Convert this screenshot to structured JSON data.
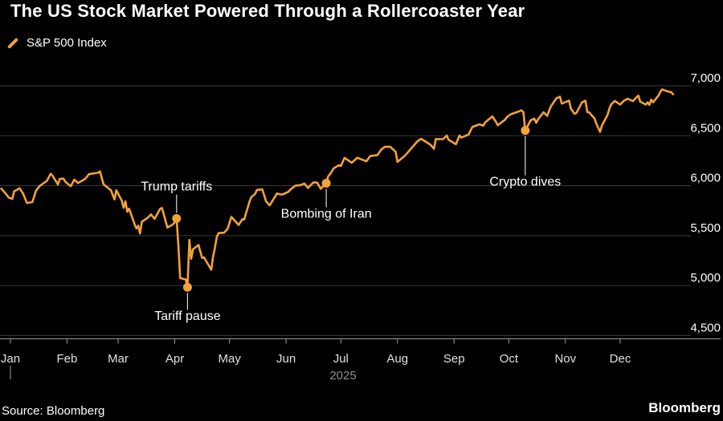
{
  "page": {
    "title": "The US Stock Market Powered Through a Rollercoaster Year",
    "source": "Source: Bloomberg",
    "brand": "Bloomberg"
  },
  "legend": {
    "series_label": "S&P 500 Index"
  },
  "colors": {
    "background": "#000000",
    "line": "#F2A23A",
    "grid": "#3a3a3a",
    "axis": "#9b9b9b",
    "y_label": "#ffffff",
    "x_label": "#e0e0e0",
    "muted": "#8f8f8f",
    "annotation_text": "#ffffff",
    "connector": "#d9d9d9"
  },
  "chart_data": {
    "type": "line",
    "title": "The US Stock Market Powered Through a Rollercoaster Year",
    "xlabel": "",
    "ylabel": "",
    "grid": "horizontal",
    "legend_position": "top-left",
    "x_axis": {
      "months": [
        "Jan",
        "Feb",
        "Mar",
        "Apr",
        "May",
        "Jun",
        "Jul",
        "Aug",
        "Sep",
        "Oct",
        "Nov",
        "Dec"
      ],
      "year_label": "2025"
    },
    "y_axis": {
      "range": [
        4500,
        7000
      ],
      "ticks": [
        {
          "value": 7000,
          "label": "7,000"
        },
        {
          "value": 6500,
          "label": "6,500"
        },
        {
          "value": 6000,
          "label": "6,000"
        },
        {
          "value": 5500,
          "label": "5,500"
        },
        {
          "value": 5000,
          "label": "5,000"
        },
        {
          "value": 4500,
          "label": "4,500"
        }
      ]
    },
    "annotations": [
      {
        "label": "Trump tariffs",
        "date": "2025-04-02",
        "value": 5671,
        "dy": -35
      },
      {
        "label": "Tariff pause",
        "date": "2025-04-08",
        "value": 4983,
        "dy": 41
      },
      {
        "label": "Bombing of Iran",
        "date": "2025-06-23",
        "value": 6025,
        "dy": 43
      },
      {
        "label": "Crypto dives",
        "date": "2025-10-10",
        "value": 6553,
        "dy": 69
      }
    ],
    "series": [
      {
        "name": "S&P 500 Index",
        "points": [
          [
            "2024-12-27",
            5971
          ],
          [
            "2024-12-30",
            5907
          ],
          [
            "2024-12-31",
            5882
          ],
          [
            "2025-01-02",
            5868
          ],
          [
            "2025-01-03",
            5942
          ],
          [
            "2025-01-06",
            5975
          ],
          [
            "2025-01-08",
            5918
          ],
          [
            "2025-01-10",
            5827
          ],
          [
            "2025-01-13",
            5836
          ],
          [
            "2025-01-15",
            5950
          ],
          [
            "2025-01-17",
            5997
          ],
          [
            "2025-01-21",
            6049
          ],
          [
            "2025-01-23",
            6119
          ],
          [
            "2025-01-24",
            6101
          ],
          [
            "2025-01-27",
            6012
          ],
          [
            "2025-01-28",
            6067
          ],
          [
            "2025-01-30",
            6071
          ],
          [
            "2025-01-31",
            6041
          ],
          [
            "2025-02-03",
            5995
          ],
          [
            "2025-02-05",
            6061
          ],
          [
            "2025-02-07",
            6026
          ],
          [
            "2025-02-11",
            6069
          ],
          [
            "2025-02-13",
            6115
          ],
          [
            "2025-02-18",
            6130
          ],
          [
            "2025-02-19",
            6144
          ],
          [
            "2025-02-21",
            6013
          ],
          [
            "2025-02-25",
            5955
          ],
          [
            "2025-02-27",
            5862
          ],
          [
            "2025-02-28",
            5955
          ],
          [
            "2025-03-03",
            5850
          ],
          [
            "2025-03-04",
            5778
          ],
          [
            "2025-03-05",
            5843
          ],
          [
            "2025-03-06",
            5739
          ],
          [
            "2025-03-07",
            5770
          ],
          [
            "2025-03-10",
            5615
          ],
          [
            "2025-03-11",
            5572
          ],
          [
            "2025-03-12",
            5599
          ],
          [
            "2025-03-13",
            5521
          ],
          [
            "2025-03-14",
            5639
          ],
          [
            "2025-03-17",
            5675
          ],
          [
            "2025-03-19",
            5712
          ],
          [
            "2025-03-21",
            5668
          ],
          [
            "2025-03-24",
            5768
          ],
          [
            "2025-03-25",
            5777
          ],
          [
            "2025-03-26",
            5712
          ],
          [
            "2025-03-28",
            5581
          ],
          [
            "2025-03-31",
            5612
          ],
          [
            "2025-04-01",
            5633
          ],
          [
            "2025-04-02",
            5671
          ],
          [
            "2025-04-03",
            5396
          ],
          [
            "2025-04-04",
            5074
          ],
          [
            "2025-04-07",
            5062
          ],
          [
            "2025-04-08",
            4983
          ],
          [
            "2025-04-09",
            5457
          ],
          [
            "2025-04-10",
            5268
          ],
          [
            "2025-04-11",
            5363
          ],
          [
            "2025-04-14",
            5406
          ],
          [
            "2025-04-16",
            5276
          ],
          [
            "2025-04-17",
            5283
          ],
          [
            "2025-04-21",
            5158
          ],
          [
            "2025-04-22",
            5288
          ],
          [
            "2025-04-23",
            5376
          ],
          [
            "2025-04-24",
            5485
          ],
          [
            "2025-04-25",
            5525
          ],
          [
            "2025-04-28",
            5529
          ],
          [
            "2025-04-30",
            5569
          ],
          [
            "2025-05-02",
            5687
          ],
          [
            "2025-05-06",
            5607
          ],
          [
            "2025-05-08",
            5664
          ],
          [
            "2025-05-09",
            5660
          ],
          [
            "2025-05-12",
            5844
          ],
          [
            "2025-05-13",
            5887
          ],
          [
            "2025-05-15",
            5916
          ],
          [
            "2025-05-16",
            5958
          ],
          [
            "2025-05-19",
            5963
          ],
          [
            "2025-05-21",
            5845
          ],
          [
            "2025-05-23",
            5803
          ],
          [
            "2025-05-27",
            5922
          ],
          [
            "2025-05-29",
            5912
          ],
          [
            "2025-05-30",
            5912
          ],
          [
            "2025-06-02",
            5936
          ],
          [
            "2025-06-04",
            5971
          ],
          [
            "2025-06-06",
            6000
          ],
          [
            "2025-06-09",
            6006
          ],
          [
            "2025-06-11",
            6022
          ],
          [
            "2025-06-13",
            5977
          ],
          [
            "2025-06-16",
            6033
          ],
          [
            "2025-06-18",
            6031
          ],
          [
            "2025-06-20",
            5968
          ],
          [
            "2025-06-23",
            6025
          ],
          [
            "2025-06-24",
            6092
          ],
          [
            "2025-06-26",
            6141
          ],
          [
            "2025-06-27",
            6173
          ],
          [
            "2025-06-30",
            6205
          ],
          [
            "2025-07-01",
            6198
          ],
          [
            "2025-07-03",
            6279
          ],
          [
            "2025-07-07",
            6230
          ],
          [
            "2025-07-10",
            6280
          ],
          [
            "2025-07-15",
            6244
          ],
          [
            "2025-07-17",
            6297
          ],
          [
            "2025-07-21",
            6306
          ],
          [
            "2025-07-23",
            6359
          ],
          [
            "2025-07-25",
            6389
          ],
          [
            "2025-07-28",
            6390
          ],
          [
            "2025-07-31",
            6339
          ],
          [
            "2025-08-01",
            6238
          ],
          [
            "2025-08-05",
            6299
          ],
          [
            "2025-08-07",
            6340
          ],
          [
            "2025-08-12",
            6446
          ],
          [
            "2025-08-14",
            6469
          ],
          [
            "2025-08-19",
            6411
          ],
          [
            "2025-08-21",
            6370
          ],
          [
            "2025-08-22",
            6467
          ],
          [
            "2025-08-26",
            6466
          ],
          [
            "2025-08-28",
            6502
          ],
          [
            "2025-08-29",
            6460
          ],
          [
            "2025-09-02",
            6415
          ],
          [
            "2025-09-04",
            6502
          ],
          [
            "2025-09-05",
            6481
          ],
          [
            "2025-09-09",
            6513
          ],
          [
            "2025-09-11",
            6587
          ],
          [
            "2025-09-15",
            6615
          ],
          [
            "2025-09-17",
            6600
          ],
          [
            "2025-09-18",
            6632
          ],
          [
            "2025-09-22",
            6694
          ],
          [
            "2025-09-24",
            6638
          ],
          [
            "2025-09-25",
            6605
          ],
          [
            "2025-09-29",
            6661
          ],
          [
            "2025-09-30",
            6688
          ],
          [
            "2025-10-02",
            6715
          ],
          [
            "2025-10-06",
            6740
          ],
          [
            "2025-10-08",
            6754
          ],
          [
            "2025-10-09",
            6735
          ],
          [
            "2025-10-10",
            6553
          ],
          [
            "2025-10-13",
            6655
          ],
          [
            "2025-10-15",
            6671
          ],
          [
            "2025-10-16",
            6629
          ],
          [
            "2025-10-17",
            6664
          ],
          [
            "2025-10-20",
            6735
          ],
          [
            "2025-10-22",
            6699
          ],
          [
            "2025-10-24",
            6792
          ],
          [
            "2025-10-27",
            6875
          ],
          [
            "2025-10-29",
            6891
          ],
          [
            "2025-10-30",
            6822
          ],
          [
            "2025-11-03",
            6852
          ],
          [
            "2025-11-04",
            6772
          ],
          [
            "2025-11-06",
            6720
          ],
          [
            "2025-11-07",
            6729
          ],
          [
            "2025-11-10",
            6833
          ],
          [
            "2025-11-12",
            6851
          ],
          [
            "2025-11-13",
            6737
          ],
          [
            "2025-11-14",
            6734
          ],
          [
            "2025-11-17",
            6672
          ],
          [
            "2025-11-18",
            6617
          ],
          [
            "2025-11-20",
            6539
          ],
          [
            "2025-11-21",
            6603
          ],
          [
            "2025-11-24",
            6705
          ],
          [
            "2025-11-25",
            6766
          ],
          [
            "2025-11-26",
            6812
          ],
          [
            "2025-11-28",
            6849
          ],
          [
            "2025-12-01",
            6812
          ],
          [
            "2025-12-03",
            6850
          ],
          [
            "2025-12-05",
            6871
          ],
          [
            "2025-12-08",
            6847
          ],
          [
            "2025-12-10",
            6887
          ],
          [
            "2025-12-11",
            6901
          ],
          [
            "2025-12-12",
            6840
          ],
          [
            "2025-12-15",
            6812
          ],
          [
            "2025-12-16",
            6835
          ],
          [
            "2025-12-17",
            6810
          ],
          [
            "2025-12-18",
            6862
          ],
          [
            "2025-12-19",
            6835
          ],
          [
            "2025-12-22",
            6902
          ],
          [
            "2025-12-23",
            6940
          ],
          [
            "2025-12-24",
            6965
          ],
          [
            "2025-12-26",
            6950
          ],
          [
            "2025-12-29",
            6935
          ],
          [
            "2025-12-30",
            6915
          ]
        ]
      }
    ]
  }
}
